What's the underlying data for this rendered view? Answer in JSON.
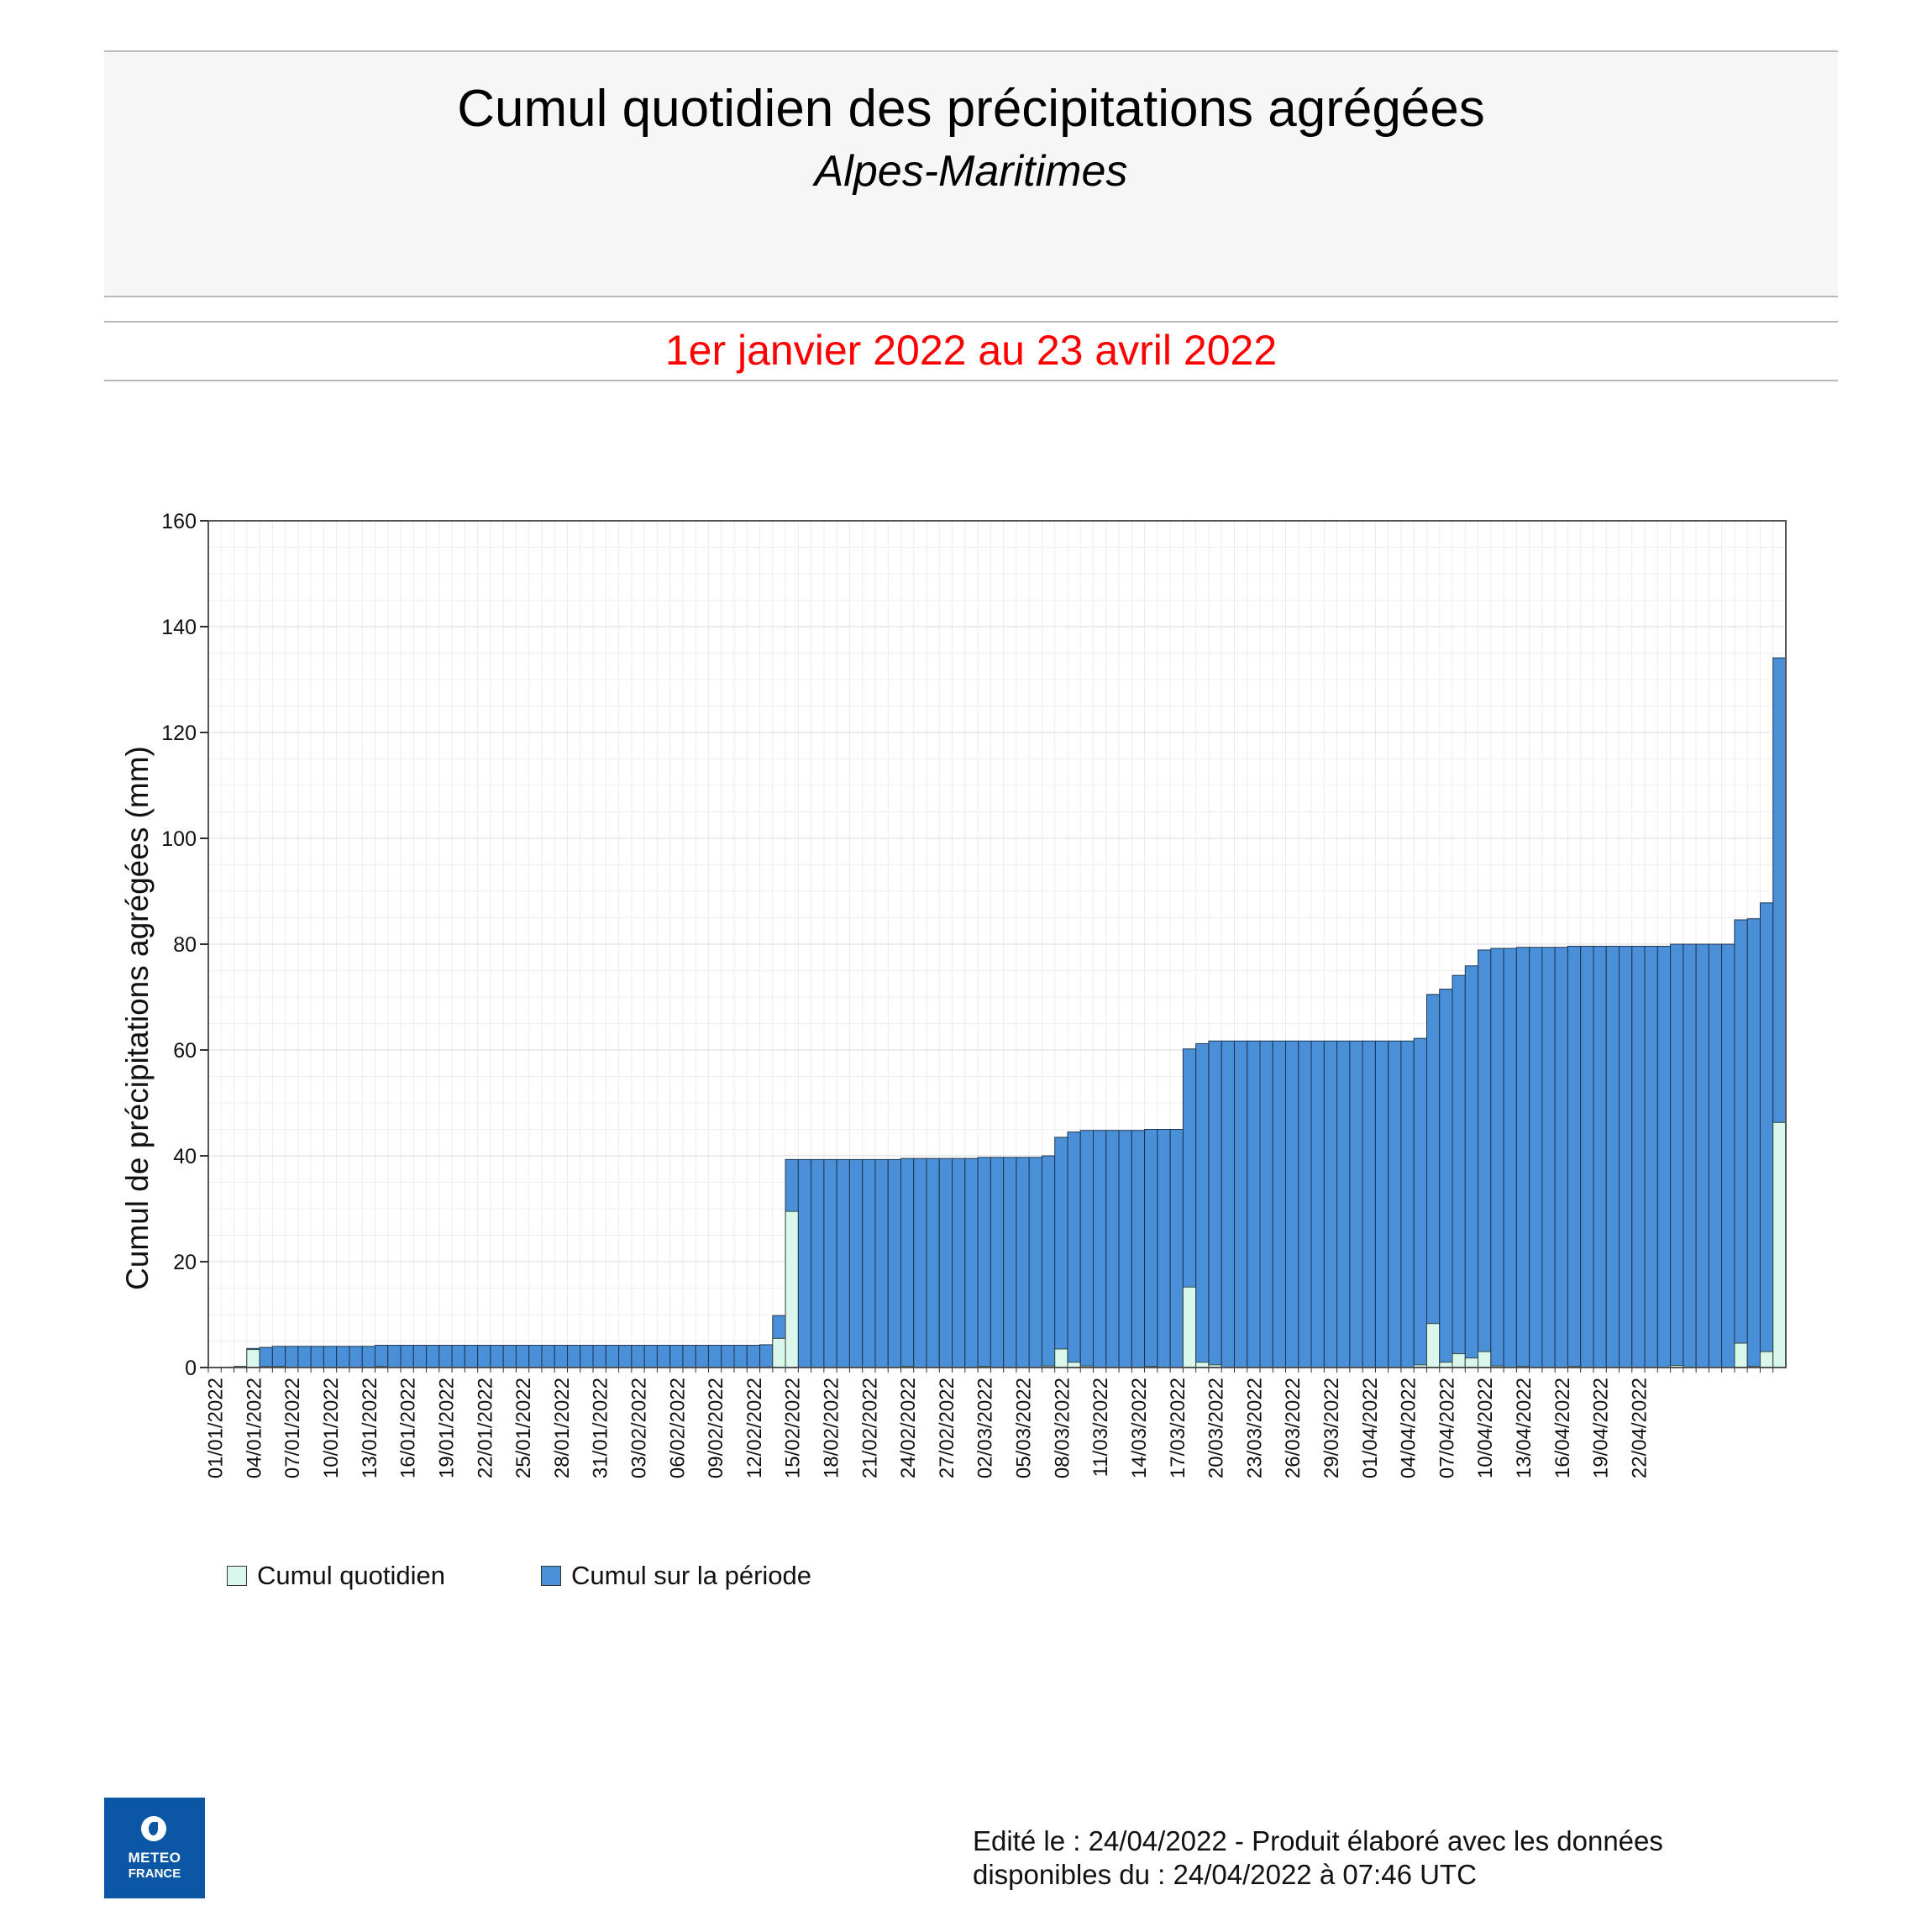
{
  "header": {
    "title": "Cumul quotidien des précipitations agrégées",
    "subtitle": "Alpes-Maritimes",
    "period": "1er janvier 2022 au 23 avril 2022"
  },
  "chart_data": {
    "type": "bar",
    "ylabel": "Cumul de précipitations agrégées (mm)",
    "ylim": [
      0,
      160
    ],
    "yticks": [
      0,
      20,
      40,
      60,
      80,
      100,
      120,
      140,
      160
    ],
    "grid": true,
    "xtick_labels": [
      "01/01/2022",
      "04/01/2022",
      "07/01/2022",
      "10/01/2022",
      "13/01/2022",
      "16/01/2022",
      "19/01/2022",
      "22/01/2022",
      "25/01/2022",
      "28/01/2022",
      "31/01/2022",
      "03/02/2022",
      "06/02/2022",
      "09/02/2022",
      "12/02/2022",
      "15/02/2022",
      "18/02/2022",
      "21/02/2022",
      "24/02/2022",
      "27/02/2022",
      "02/03/2022",
      "05/03/2022",
      "08/03/2022",
      "11/03/2022",
      "14/03/2022",
      "17/03/2022",
      "20/03/2022",
      "23/03/2022",
      "26/03/2022",
      "29/03/2022",
      "01/04/2022",
      "04/04/2022",
      "07/04/2022",
      "10/04/2022",
      "13/04/2022",
      "16/04/2022",
      "19/04/2022",
      "22/04/2022"
    ],
    "series": [
      {
        "name": "Cumul quotidien",
        "color": "#d9f7ea",
        "values": [
          0,
          0,
          0.2,
          3.4,
          0.2,
          0.2,
          0,
          0,
          0,
          0,
          0,
          0,
          0,
          0.2,
          0,
          0,
          0,
          0,
          0,
          0,
          0,
          0,
          0,
          0,
          0,
          0,
          0,
          0,
          0,
          0,
          0,
          0,
          0,
          0,
          0,
          0,
          0,
          0,
          0,
          0,
          0,
          0,
          0,
          0.1,
          5.5,
          29.5,
          0,
          0,
          0,
          0,
          0,
          0,
          0,
          0,
          0.2,
          0,
          0,
          0,
          0,
          0,
          0.2,
          0,
          0,
          0,
          0,
          0.3,
          3.5,
          1,
          0.3,
          0,
          0,
          0,
          0,
          0.2,
          0,
          0,
          15.2,
          1,
          0.5,
          0,
          0,
          0,
          0,
          0,
          0,
          0,
          0,
          0,
          0,
          0,
          0,
          0,
          0,
          0,
          0.5,
          8.3,
          1,
          2.6,
          1.8,
          3,
          0.3,
          0,
          0.2,
          0,
          0,
          0,
          0.2,
          0,
          0,
          0,
          0,
          0,
          0,
          0,
          0.4,
          0,
          0,
          0,
          0,
          4.6,
          0.2,
          3,
          46.3
        ]
      },
      {
        "name": "Cumul sur la période",
        "color": "#4a90d9",
        "values": [
          0,
          0,
          0.2,
          3.6,
          3.8,
          4,
          4,
          4,
          4,
          4,
          4,
          4,
          4,
          4.2,
          4.2,
          4.2,
          4.2,
          4.2,
          4.2,
          4.2,
          4.2,
          4.2,
          4.2,
          4.2,
          4.2,
          4.2,
          4.2,
          4.2,
          4.2,
          4.2,
          4.2,
          4.2,
          4.2,
          4.2,
          4.2,
          4.2,
          4.2,
          4.2,
          4.2,
          4.2,
          4.2,
          4.2,
          4.2,
          4.3,
          9.8,
          39.3,
          39.3,
          39.3,
          39.3,
          39.3,
          39.3,
          39.3,
          39.3,
          39.3,
          39.5,
          39.5,
          39.5,
          39.5,
          39.5,
          39.5,
          39.7,
          39.7,
          39.7,
          39.7,
          39.7,
          40,
          43.5,
          44.5,
          44.8,
          44.8,
          44.8,
          44.8,
          44.8,
          45,
          45,
          45,
          60.2,
          61.2,
          61.7,
          61.7,
          61.7,
          61.7,
          61.7,
          61.7,
          61.7,
          61.7,
          61.7,
          61.7,
          61.7,
          61.7,
          61.7,
          61.7,
          61.7,
          61.7,
          62.2,
          70.5,
          71.5,
          74.1,
          75.9,
          78.9,
          79.2,
          79.2,
          79.4,
          79.4,
          79.4,
          79.4,
          79.6,
          79.6,
          79.6,
          79.6,
          79.6,
          79.6,
          79.6,
          79.6,
          80,
          80,
          80,
          80,
          80,
          84.6,
          84.8,
          87.8,
          134.1
        ]
      }
    ]
  },
  "footer": {
    "line1": "Edité le : 24/04/2022 - Produit élaboré avec les données",
    "line2": "disponibles du : 24/04/2022 à 07:46 UTC"
  },
  "logo": {
    "line1": "METEO",
    "line2": "FRANCE"
  }
}
